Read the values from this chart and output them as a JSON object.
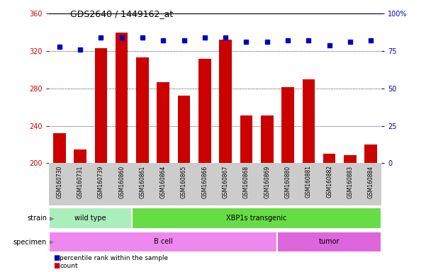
{
  "title": "GDS2640 / 1449162_at",
  "samples": [
    "GSM160730",
    "GSM160731",
    "GSM160739",
    "GSM160860",
    "GSM160861",
    "GSM160864",
    "GSM160865",
    "GSM160866",
    "GSM160867",
    "GSM160868",
    "GSM160869",
    "GSM160880",
    "GSM160881",
    "GSM160882",
    "GSM160883",
    "GSM160884"
  ],
  "counts": [
    232,
    215,
    323,
    340,
    313,
    287,
    272,
    312,
    332,
    251,
    251,
    281,
    290,
    210,
    209,
    220
  ],
  "percentiles": [
    78,
    76,
    84,
    84,
    84,
    82,
    82,
    84,
    84,
    81,
    81,
    82,
    82,
    79,
    81,
    82
  ],
  "ylim_left": [
    200,
    360
  ],
  "ylim_right": [
    0,
    100
  ],
  "yticks_left": [
    200,
    240,
    280,
    320,
    360
  ],
  "yticks_right": [
    0,
    25,
    50,
    75,
    100
  ],
  "bar_color": "#cc0000",
  "dot_color": "#0000bb",
  "strain_groups": [
    {
      "label": "wild type",
      "start": 0,
      "end": 4,
      "color": "#aaeebb"
    },
    {
      "label": "XBP1s transgenic",
      "start": 4,
      "end": 16,
      "color": "#66dd44"
    }
  ],
  "specimen_groups": [
    {
      "label": "B cell",
      "start": 0,
      "end": 11,
      "color": "#ee88ee"
    },
    {
      "label": "tumor",
      "start": 11,
      "end": 16,
      "color": "#dd66dd"
    }
  ],
  "strain_label": "strain",
  "specimen_label": "specimen",
  "legend_count_label": "count",
  "legend_pct_label": "percentile rank within the sample",
  "bg_color": "#ffffff",
  "xtick_bg_color": "#cccccc"
}
